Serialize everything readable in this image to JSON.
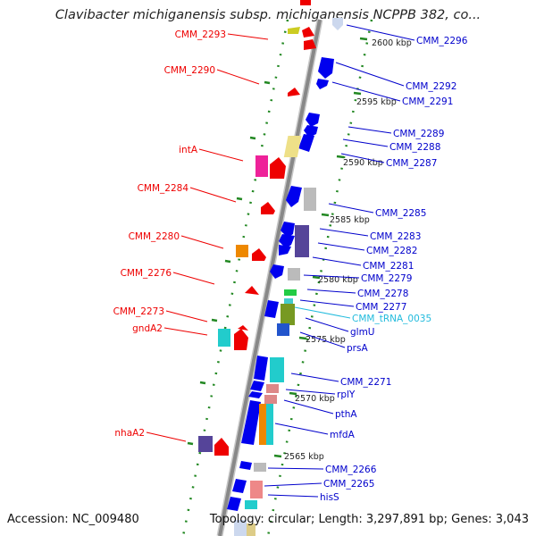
{
  "title": "Clavibacter michiganensis subsp. michiganensis NCPPB 382, co...",
  "accession": "Accession: NC_009480",
  "summary": "Topology: circular; Length: 3,297,891 bp; Genes: 3,043",
  "colors": {
    "left_label": "#ee0000",
    "right_label": "#0000cc",
    "rna_label": "#22bbdd",
    "backbone": "#888888",
    "ticks": "#228822"
  },
  "scale_labels": [
    "2600 kbp",
    "2595 kbp",
    "2590 kbp",
    "2585 kbp",
    "2580 kbp",
    "2575 kbp",
    "2570 kbp",
    "2565 kbp"
  ],
  "left_labels": [
    "CMM_2293",
    "CMM_2290",
    "intA",
    "CMM_2284",
    "CMM_2280",
    "CMM_2276",
    "CMM_2273",
    "gndA2",
    "nhaA2"
  ],
  "right_labels": [
    "CMM_2296",
    "CMM_2292",
    "CMM_2291",
    "CMM_2289",
    "CMM_2288",
    "CMM_2287",
    "CMM_2285",
    "CMM_2283",
    "CMM_2282",
    "CMM_2281",
    "CMM_2279",
    "CMM_2278",
    "CMM_2277",
    "CMM_tRNA_0035",
    "glmU",
    "prsA",
    "CMM_2271",
    "rplY",
    "pthA",
    "mfdA",
    "CMM_2266",
    "CMM_2265",
    "hisS"
  ]
}
